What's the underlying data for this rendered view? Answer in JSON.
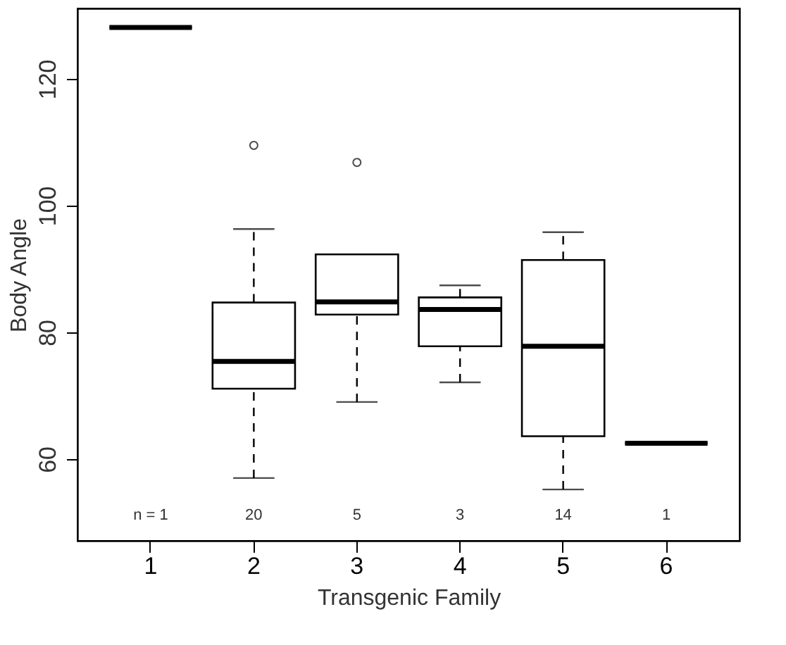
{
  "chart_data": {
    "type": "box",
    "xlabel": "Transgenic Family",
    "ylabel": "Body Angle",
    "categories": [
      "1",
      "2",
      "3",
      "4",
      "5",
      "6"
    ],
    "boxes": [
      {
        "low": 128.1,
        "q1": 128.1,
        "median": 128.1,
        "q3": 128.1,
        "high": 128.1
      },
      {
        "low": 57.0,
        "q1": 71.1,
        "median": 75.4,
        "q3": 84.7,
        "high": 96.3,
        "outliers": [
          109.5
        ]
      },
      {
        "low": 69.0,
        "q1": 82.8,
        "median": 84.8,
        "q3": 92.3,
        "high": 92.3,
        "outliers": [
          106.8
        ]
      },
      {
        "low": 72.1,
        "q1": 77.8,
        "median": 83.6,
        "q3": 85.5,
        "high": 87.4
      },
      {
        "low": 55.2,
        "q1": 63.6,
        "median": 77.8,
        "q3": 91.4,
        "high": 95.8
      },
      {
        "low": 62.5,
        "q1": 62.5,
        "median": 62.5,
        "q3": 62.5,
        "high": 62.5
      }
    ],
    "ylim": [
      47.1,
      131.1
    ],
    "yticks": [
      60,
      80,
      100,
      120
    ],
    "grid": false,
    "annotations": [
      "n =  1",
      "20",
      "5",
      "3",
      "14",
      "1"
    ]
  }
}
